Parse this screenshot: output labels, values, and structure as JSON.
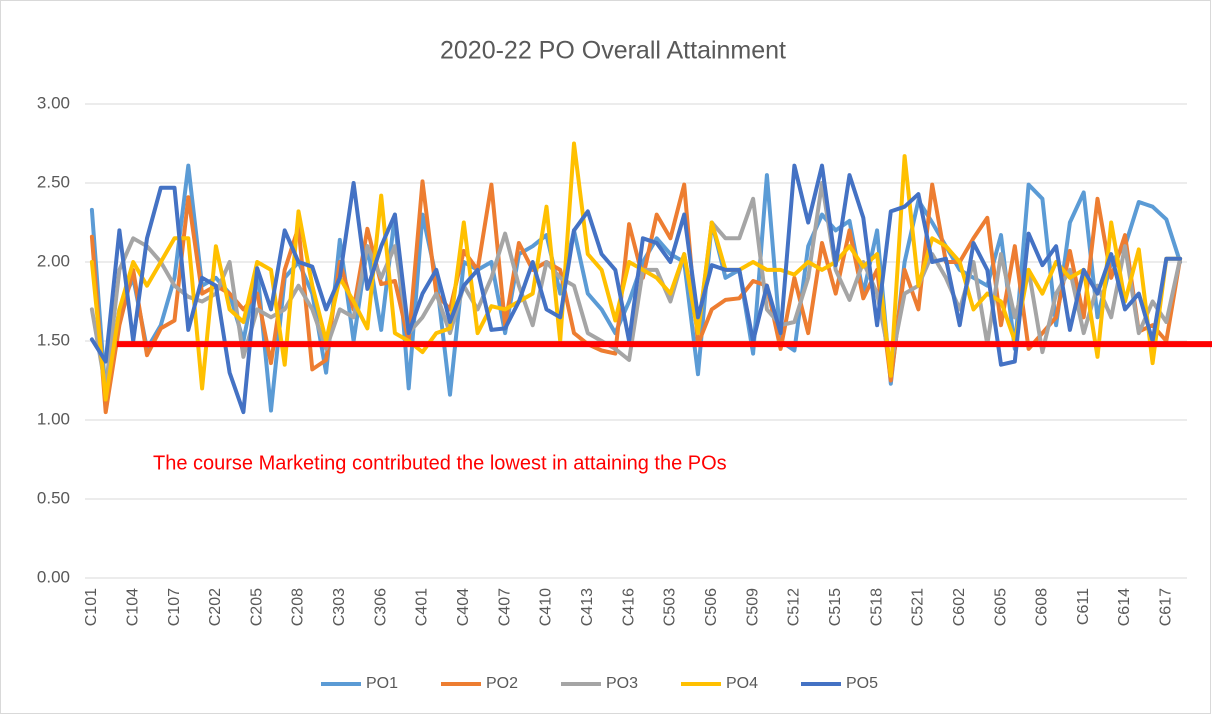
{
  "chart_data": {
    "type": "line",
    "title": "2020-22 PO Overall Attainment",
    "categories": [
      "C101",
      null,
      null,
      "C104",
      null,
      null,
      "C107",
      null,
      null,
      "C202",
      null,
      null,
      "C205",
      null,
      null,
      "C208",
      null,
      null,
      "C303",
      null,
      null,
      "C306",
      null,
      null,
      "C401",
      null,
      null,
      "C404",
      null,
      null,
      "C407",
      null,
      null,
      "C410",
      null,
      null,
      "C413",
      null,
      null,
      "C416",
      null,
      null,
      "C503",
      null,
      null,
      "C506",
      null,
      null,
      "C509",
      null,
      null,
      "C512",
      null,
      null,
      "C515",
      null,
      null,
      "C518",
      null,
      null,
      "C521",
      null,
      null,
      "C602",
      null,
      null,
      "C605",
      null,
      null,
      "C608",
      null,
      null,
      "C611",
      null,
      null,
      "C614",
      null,
      null,
      "C617",
      null
    ],
    "series": [
      {
        "name": "PO1",
        "color": "#5B9BD5",
        "values": [
          2.33,
          1.15,
          1.7,
          1.9,
          1.45,
          1.6,
          1.9,
          2.61,
          1.85,
          1.9,
          1.8,
          1.5,
          1.95,
          1.06,
          1.9,
          2.0,
          1.8,
          1.3,
          2.14,
          1.5,
          2.1,
          1.57,
          2.3,
          1.2,
          2.3,
          1.9,
          1.16,
          2.0,
          1.95,
          2.0,
          1.55,
          2.05,
          2.1,
          2.17,
          1.8,
          2.2,
          1.8,
          1.7,
          1.55,
          1.75,
          2.0,
          2.15,
          2.05,
          2.0,
          1.29,
          2.25,
          1.9,
          1.95,
          1.42,
          2.55,
          1.5,
          1.44,
          2.1,
          2.3,
          2.2,
          2.26,
          1.8,
          2.2,
          1.23,
          2.0,
          2.39,
          2.25,
          2.1,
          1.95,
          1.9,
          1.85,
          2.17,
          1.45,
          2.49,
          2.4,
          1.6,
          2.25,
          2.44,
          1.65,
          2.0,
          2.1,
          2.38,
          2.35,
          2.27,
          2.0
        ]
      },
      {
        "name": "PO2",
        "color": "#ED7D31",
        "values": [
          2.16,
          1.05,
          1.6,
          1.95,
          1.41,
          1.58,
          1.63,
          2.41,
          1.8,
          1.85,
          1.8,
          1.7,
          1.8,
          1.36,
          1.95,
          2.22,
          1.32,
          1.38,
          2.0,
          1.7,
          2.21,
          1.86,
          1.88,
          1.5,
          2.51,
          1.8,
          1.7,
          2.07,
          1.95,
          2.49,
          1.6,
          2.12,
          1.95,
          2.0,
          1.95,
          1.55,
          1.48,
          1.44,
          1.42,
          2.24,
          1.9,
          2.3,
          2.15,
          2.49,
          1.48,
          1.7,
          1.76,
          1.77,
          1.88,
          1.85,
          1.45,
          1.9,
          1.55,
          2.12,
          1.8,
          2.2,
          1.77,
          1.95,
          1.25,
          1.95,
          1.7,
          2.49,
          2.0,
          2.0,
          2.15,
          2.28,
          1.6,
          2.1,
          1.45,
          1.55,
          1.65,
          2.07,
          1.65,
          2.4,
          1.9,
          2.17,
          1.56,
          1.6,
          1.5,
          2.02
        ]
      },
      {
        "name": "PO3",
        "color": "#A5A5A5",
        "values": [
          1.7,
          1.2,
          1.95,
          2.15,
          2.1,
          2.0,
          1.85,
          1.78,
          1.75,
          1.8,
          2.0,
          1.4,
          1.7,
          1.65,
          1.7,
          1.85,
          1.7,
          1.45,
          1.7,
          1.65,
          2.1,
          1.9,
          2.1,
          1.55,
          1.65,
          1.8,
          1.55,
          1.85,
          1.7,
          1.9,
          2.18,
          1.85,
          1.6,
          2.0,
          1.9,
          1.85,
          1.55,
          1.5,
          1.45,
          1.38,
          1.95,
          1.95,
          1.75,
          2.05,
          1.55,
          2.25,
          2.15,
          2.15,
          2.4,
          1.7,
          1.6,
          1.62,
          1.9,
          2.5,
          1.95,
          1.76,
          2.0,
          1.8,
          1.35,
          1.8,
          1.85,
          2.05,
          1.9,
          1.7,
          2.0,
          1.48,
          2.05,
          1.65,
          1.95,
          1.43,
          1.8,
          1.95,
          1.55,
          1.85,
          1.65,
          2.1,
          1.55,
          1.75,
          1.62,
          2.02
        ]
      },
      {
        "name": "PO4",
        "color": "#FFC000",
        "values": [
          2.0,
          1.13,
          1.7,
          2.0,
          1.85,
          2.0,
          2.15,
          2.15,
          1.2,
          2.1,
          1.7,
          1.62,
          2.0,
          1.95,
          1.35,
          2.32,
          1.85,
          1.5,
          1.9,
          1.75,
          1.58,
          2.42,
          1.55,
          1.5,
          1.43,
          1.55,
          1.58,
          2.25,
          1.55,
          1.72,
          1.7,
          1.75,
          1.8,
          2.35,
          1.5,
          2.75,
          2.05,
          1.95,
          1.63,
          2.0,
          1.95,
          1.9,
          1.8,
          2.05,
          1.55,
          2.25,
          1.95,
          1.95,
          2.0,
          1.95,
          1.95,
          1.92,
          2.0,
          1.95,
          2.0,
          2.1,
          1.97,
          2.05,
          1.28,
          2.67,
          1.85,
          2.15,
          2.1,
          2.0,
          1.7,
          1.8,
          1.75,
          1.5,
          1.95,
          1.8,
          2.0,
          1.9,
          1.95,
          1.4,
          2.25,
          1.75,
          2.08,
          1.36,
          2.02,
          2.02
        ]
      },
      {
        "name": "PO5",
        "color": "#4472C4",
        "values": [
          1.51,
          1.37,
          2.2,
          1.5,
          2.15,
          2.47,
          2.47,
          1.57,
          1.9,
          1.85,
          1.3,
          1.05,
          1.96,
          1.7,
          2.2,
          2.0,
          1.97,
          1.7,
          1.9,
          2.5,
          1.83,
          2.1,
          2.3,
          1.55,
          1.8,
          1.95,
          1.62,
          1.85,
          1.95,
          1.57,
          1.58,
          1.75,
          2.0,
          1.7,
          1.65,
          2.2,
          2.32,
          2.05,
          1.95,
          1.5,
          2.15,
          2.12,
          2.0,
          2.3,
          1.65,
          1.98,
          1.95,
          1.95,
          1.5,
          1.85,
          1.55,
          2.61,
          2.25,
          2.61,
          1.98,
          2.55,
          2.28,
          1.6,
          2.32,
          2.35,
          2.43,
          2.0,
          2.02,
          1.6,
          2.12,
          1.95,
          1.35,
          1.37,
          2.18,
          1.98,
          2.1,
          1.57,
          1.95,
          1.8,
          2.05,
          1.7,
          1.8,
          1.5,
          2.02,
          2.02
        ]
      }
    ],
    "ylim": [
      0,
      3
    ],
    "yticks": [
      {
        "value": 0,
        "label": "0.00"
      },
      {
        "value": 0.5,
        "label": "0.50"
      },
      {
        "value": 1,
        "label": "1.00"
      },
      {
        "value": 1.5,
        "label": "1.50"
      },
      {
        "value": 2,
        "label": "2.00"
      },
      {
        "value": 2.5,
        "label": "2.50"
      },
      {
        "value": 3,
        "label": "3.00"
      }
    ],
    "grid": true,
    "legend": "bottom",
    "reference_line": {
      "value": 1.48,
      "color": "#FF0000"
    },
    "annotation": "The course Marketing contributed the lowest in attaining the POs"
  }
}
